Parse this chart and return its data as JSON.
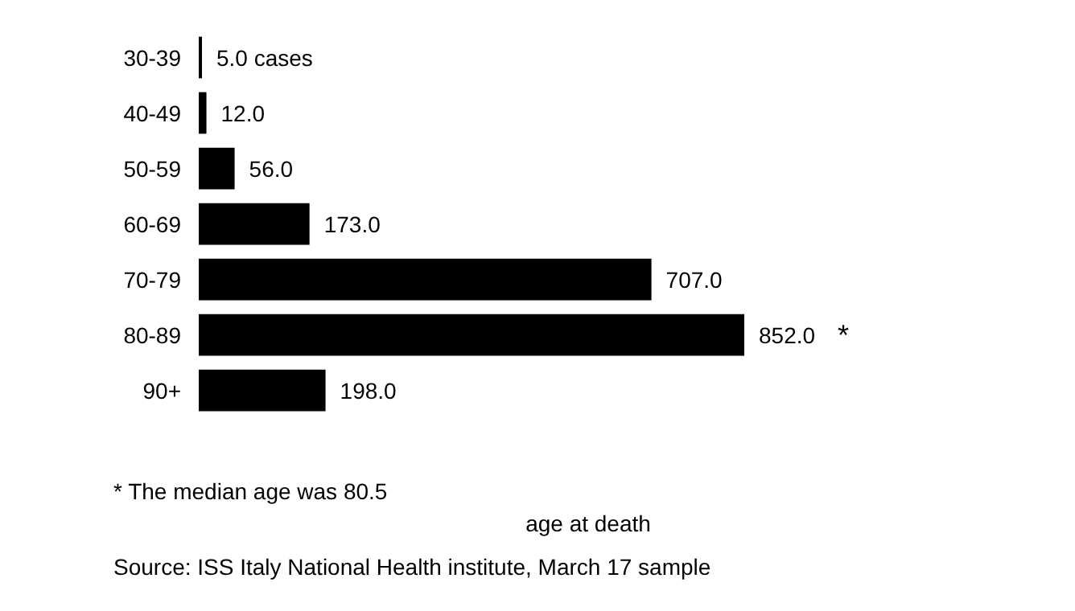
{
  "chart_data": {
    "type": "bar",
    "orientation": "horizontal",
    "categories": [
      "30-39",
      "40-49",
      "50-59",
      "60-69",
      "70-79",
      "80-89",
      "90+"
    ],
    "values": [
      5.0,
      12.0,
      56.0,
      173.0,
      707.0,
      852.0,
      198.0
    ],
    "value_labels": [
      "5.0 cases",
      "12.0",
      "56.0",
      "173.0",
      "707.0",
      "852.0",
      "198.0"
    ],
    "color": "#000000",
    "xlabel": "age at death",
    "annotations": [
      "*",
      "* The median age was 80.5",
      "Source: ISS Italy National Health institute, March 17 sample"
    ],
    "grid": false
  }
}
